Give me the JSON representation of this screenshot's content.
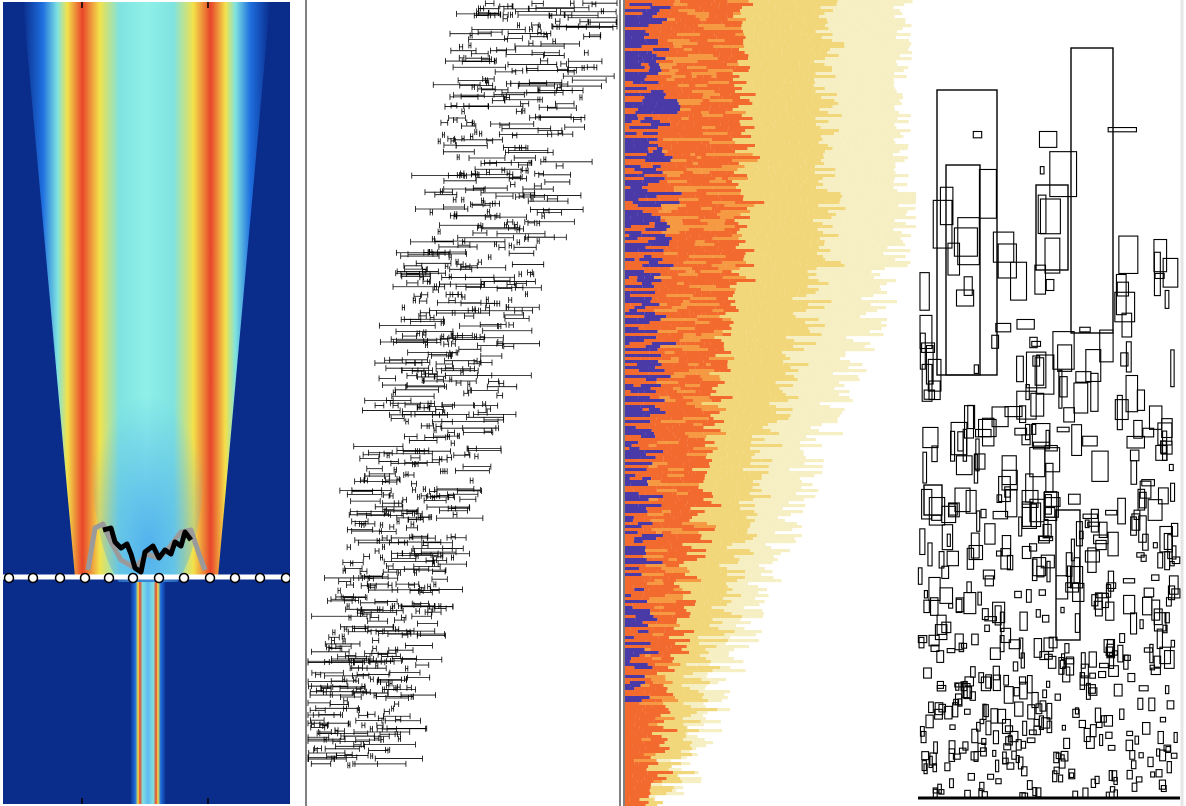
{
  "figure": {
    "panels": [
      {
        "id": "beam",
        "kind": "intensity-map"
      },
      {
        "id": "errorbars",
        "kind": "horizontal-error-bars"
      },
      {
        "id": "heat",
        "kind": "heat-strips"
      },
      {
        "id": "boxes",
        "kind": "rectangle-outlines"
      }
    ]
  },
  "colors": {
    "beam_background": "#0a2d8c",
    "beam_hot": "#e8452a",
    "beam_mid": "#f3e24a",
    "beam_cool": "#7fe3e0",
    "heat_dark": "#4a3aa8",
    "heat_orange": "#f26a2e",
    "heat_yellow": "#f2d77a",
    "heat_pale": "#f7efc4",
    "ink": "#000000"
  }
}
